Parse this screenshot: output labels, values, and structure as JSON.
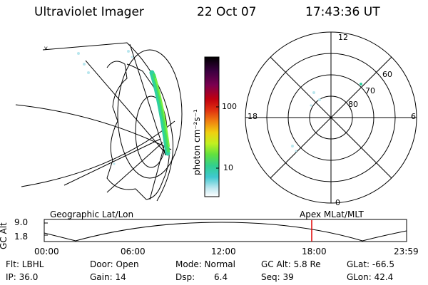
{
  "header": {
    "title": "Ultraviolet Imager",
    "date": "22 Oct 07",
    "time": "17:43:36 UT"
  },
  "colorbar": {
    "label": "photon cm⁻²s⁻¹",
    "ticks": [
      "100",
      "10"
    ],
    "colors": [
      "#000000",
      "#3a0040",
      "#6a0050",
      "#90003a",
      "#c00010",
      "#e0301a",
      "#f07010",
      "#f0a010",
      "#f0d010",
      "#d0f020",
      "#80f040",
      "#40e080",
      "#30d0c0",
      "#b0e8f0",
      "#ffffff"
    ]
  },
  "polar": {
    "mlt_labels": [
      "12",
      "18",
      "6",
      "0"
    ],
    "lat_labels": [
      "60",
      "70",
      "80"
    ]
  },
  "timeline": {
    "left_label": "Geographic Lat/Lon",
    "right_label": "Apex MLat/MLT",
    "y_axis_label": "GC Alt",
    "y_ticks": [
      "9.0",
      "1.8"
    ],
    "x_ticks": [
      "00:00",
      "06:00",
      "12:00",
      "18:00",
      "23:59"
    ],
    "marker_time": "17:43",
    "marker_color": "#e00000"
  },
  "info": {
    "flt": "Flt: LBHL",
    "door": "Door: Open",
    "mode": "Mode: Normal",
    "gcalt": "GC Alt: 5.8 Re",
    "glat": "GLat: -66.5",
    "ip": "IP: 36.0",
    "gain": "Gain: 14",
    "dsp_label": "Dsp:",
    "dsp_value": "6.4",
    "seq": "Seq: 39",
    "glon": "GLon: 42.4"
  }
}
